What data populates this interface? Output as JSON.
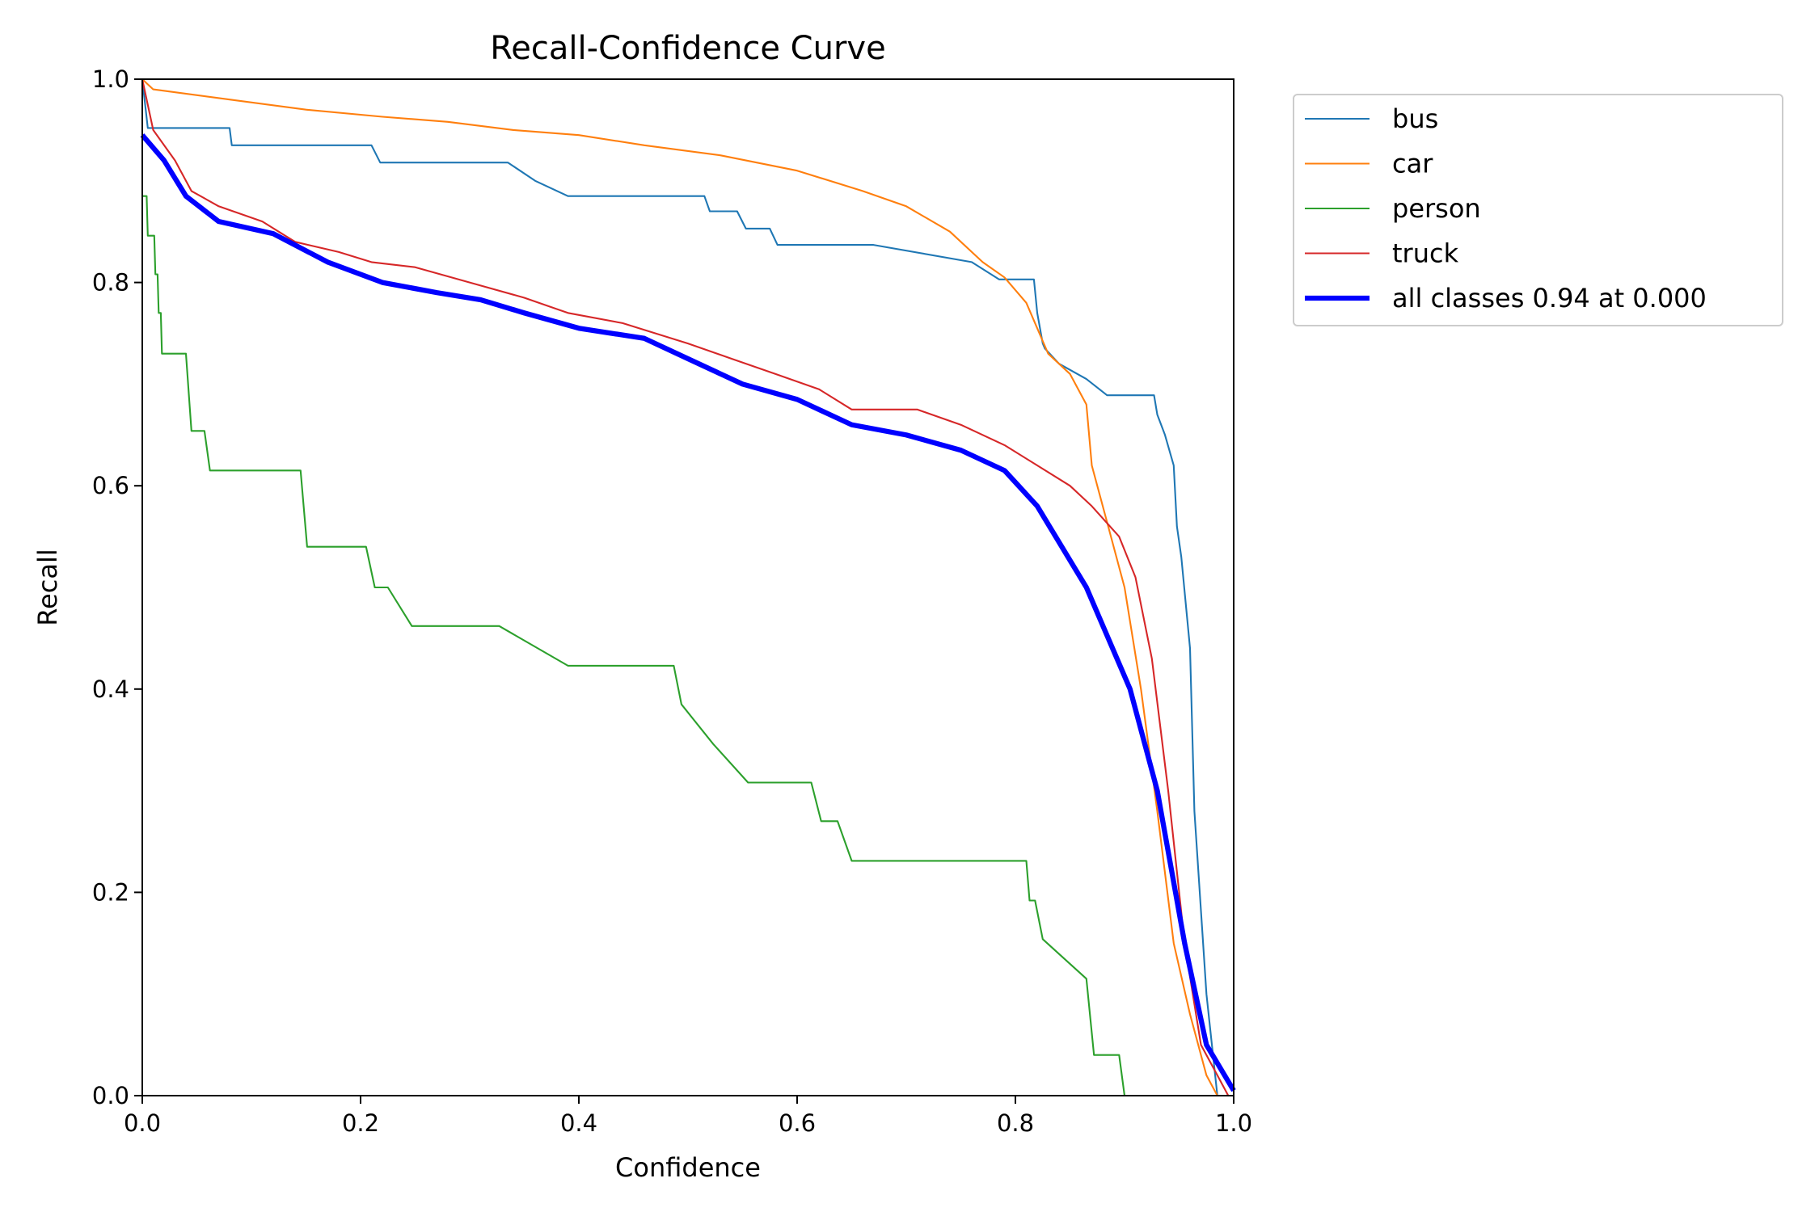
{
  "chart_data": {
    "type": "line",
    "title": "Recall-Confidence Curve",
    "xlabel": "Confidence",
    "ylabel": "Recall",
    "xlim": [
      0,
      1
    ],
    "ylim": [
      0,
      1
    ],
    "xticks": [
      "0.0",
      "0.2",
      "0.4",
      "0.6",
      "0.8",
      "1.0"
    ],
    "yticks": [
      "0.0",
      "0.2",
      "0.4",
      "0.6",
      "0.8",
      "1.0"
    ],
    "grid": false,
    "legend_placement": "outside upper-right",
    "series": [
      {
        "name": "bus",
        "color": "#1f77b4",
        "width": 1,
        "x": [
          0,
          0.005,
          0.08,
          0.082,
          0.21,
          0.218,
          0.335,
          0.36,
          0.39,
          0.515,
          0.52,
          0.545,
          0.553,
          0.575,
          0.582,
          0.67,
          0.76,
          0.785,
          0.817,
          0.82,
          0.825,
          0.827,
          0.84,
          0.865,
          0.884,
          0.927,
          0.93,
          0.937,
          0.945,
          0.948,
          0.952,
          0.96,
          0.964,
          0.975,
          0.985,
          1.0
        ],
        "y": [
          1.0,
          0.952,
          0.952,
          0.935,
          0.935,
          0.918,
          0.918,
          0.9,
          0.885,
          0.885,
          0.87,
          0.87,
          0.853,
          0.853,
          0.837,
          0.837,
          0.82,
          0.803,
          0.803,
          0.77,
          0.74,
          0.735,
          0.72,
          0.705,
          0.689,
          0.689,
          0.67,
          0.65,
          0.62,
          0.56,
          0.53,
          0.44,
          0.28,
          0.1,
          0.0,
          0.0
        ]
      },
      {
        "name": "car",
        "color": "#ff7f0e",
        "width": 1,
        "x": [
          0,
          0.01,
          0.08,
          0.15,
          0.22,
          0.28,
          0.34,
          0.4,
          0.46,
          0.53,
          0.6,
          0.66,
          0.7,
          0.74,
          0.77,
          0.79,
          0.81,
          0.83,
          0.85,
          0.865,
          0.87,
          0.885,
          0.9,
          0.915,
          0.93,
          0.945,
          0.96,
          0.975,
          0.985,
          1.0
        ],
        "y": [
          1.0,
          0.99,
          0.98,
          0.97,
          0.963,
          0.958,
          0.95,
          0.945,
          0.935,
          0.925,
          0.91,
          0.89,
          0.875,
          0.85,
          0.82,
          0.805,
          0.78,
          0.73,
          0.71,
          0.68,
          0.62,
          0.56,
          0.5,
          0.4,
          0.28,
          0.15,
          0.08,
          0.02,
          0.0,
          0.0
        ]
      },
      {
        "name": "person",
        "color": "#2ca02c",
        "width": 1,
        "x": [
          0,
          0.004,
          0.005,
          0.011,
          0.012,
          0.014,
          0.015,
          0.017,
          0.018,
          0.04,
          0.045,
          0.057,
          0.062,
          0.145,
          0.151,
          0.205,
          0.213,
          0.225,
          0.247,
          0.327,
          0.39,
          0.487,
          0.494,
          0.523,
          0.555,
          0.613,
          0.622,
          0.637,
          0.65,
          0.81,
          0.813,
          0.818,
          0.825,
          0.865,
          0.872,
          0.895,
          0.9,
          0.985
        ],
        "y": [
          0.885,
          0.885,
          0.846,
          0.846,
          0.808,
          0.808,
          0.77,
          0.77,
          0.73,
          0.73,
          0.654,
          0.654,
          0.615,
          0.615,
          0.54,
          0.54,
          0.5,
          0.5,
          0.462,
          0.462,
          0.423,
          0.423,
          0.385,
          0.346,
          0.308,
          0.308,
          0.27,
          0.27,
          0.231,
          0.231,
          0.192,
          0.192,
          0.154,
          0.115,
          0.04,
          0.04,
          0.0,
          0.0
        ]
      },
      {
        "name": "truck",
        "color": "#d62728",
        "width": 1,
        "x": [
          0,
          0.01,
          0.03,
          0.045,
          0.07,
          0.11,
          0.14,
          0.18,
          0.21,
          0.25,
          0.3,
          0.35,
          0.39,
          0.44,
          0.5,
          0.54,
          0.58,
          0.62,
          0.65,
          0.71,
          0.75,
          0.79,
          0.82,
          0.85,
          0.87,
          0.895,
          0.91,
          0.925,
          0.94,
          0.955,
          0.97,
          0.985,
          0.995,
          1.0
        ],
        "y": [
          1.0,
          0.95,
          0.92,
          0.89,
          0.875,
          0.86,
          0.84,
          0.83,
          0.82,
          0.815,
          0.8,
          0.785,
          0.77,
          0.76,
          0.74,
          0.725,
          0.71,
          0.695,
          0.675,
          0.675,
          0.66,
          0.64,
          0.62,
          0.6,
          0.58,
          0.55,
          0.51,
          0.43,
          0.3,
          0.15,
          0.05,
          0.02,
          0.0,
          0.0
        ]
      },
      {
        "name": "all classes 0.94 at 0.000",
        "color": "#0000ff",
        "width": 3,
        "x": [
          0,
          0.02,
          0.04,
          0.07,
          0.12,
          0.17,
          0.22,
          0.27,
          0.31,
          0.35,
          0.4,
          0.46,
          0.5,
          0.55,
          0.6,
          0.65,
          0.7,
          0.75,
          0.79,
          0.82,
          0.865,
          0.905,
          0.93,
          0.955,
          0.975,
          1.0
        ],
        "y": [
          0.945,
          0.92,
          0.885,
          0.86,
          0.848,
          0.82,
          0.8,
          0.79,
          0.783,
          0.77,
          0.755,
          0.745,
          0.725,
          0.7,
          0.685,
          0.66,
          0.65,
          0.635,
          0.615,
          0.58,
          0.5,
          0.4,
          0.3,
          0.15,
          0.05,
          0.005
        ]
      }
    ]
  }
}
